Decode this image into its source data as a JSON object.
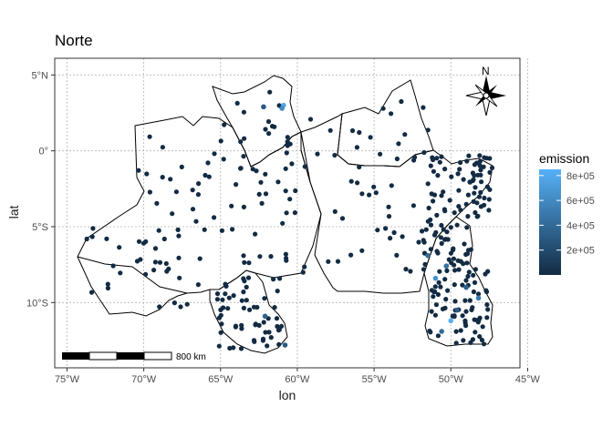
{
  "title": "Norte",
  "chart_data": {
    "type": "scatter",
    "title": "Norte",
    "xlabel": "lon",
    "ylabel": "lat",
    "xlim": [
      -75.8,
      -45.5
    ],
    "ylim": [
      -14.3,
      6.1
    ],
    "xticks": [
      -75,
      -70,
      -65,
      -60,
      -55,
      -50,
      -45
    ],
    "xtick_labels": [
      "75°W",
      "70°W",
      "65°W",
      "60°W",
      "55°W",
      "50°W",
      "45°W"
    ],
    "yticks": [
      5,
      0,
      -5,
      -10
    ],
    "ytick_labels": [
      "5°N",
      "0°",
      "5°S",
      "10°S"
    ],
    "grid": true,
    "legend": {
      "title": "emission",
      "placement": "right",
      "range": [
        0,
        850000
      ],
      "ticks": [
        200000,
        400000,
        600000,
        800000
      ],
      "tick_labels": [
        "2e+05",
        "4e+05",
        "6e+05",
        "8e+05"
      ],
      "color_low": "#132B43",
      "color_high": "#56B1F7"
    },
    "scalebar_label": "800 km",
    "north_arrow_label": "N",
    "point_color": "#132B43",
    "highlight_points": [
      {
        "lon": -60.9,
        "lat": 3.0,
        "emission": 780000
      },
      {
        "lon": -61.0,
        "lat": 2.8,
        "emission": 600000
      },
      {
        "lon": -62.2,
        "lat": 2.9,
        "emission": 300000
      },
      {
        "lon": -50.0,
        "lat": -11.2,
        "emission": 850000
      },
      {
        "lon": -50.6,
        "lat": -11.9,
        "emission": 400000
      },
      {
        "lon": -48.2,
        "lat": -9.7,
        "emission": 500000
      },
      {
        "lon": -49.0,
        "lat": -9.0,
        "emission": 350000
      },
      {
        "lon": -51.0,
        "lat": -8.4,
        "emission": 650000
      },
      {
        "lon": -50.3,
        "lat": -7.6,
        "emission": 450000
      },
      {
        "lon": -49.6,
        "lat": -10.5,
        "emission": 300000
      },
      {
        "lon": -62.1,
        "lat": -10.9,
        "emission": 350000
      },
      {
        "lon": -60.8,
        "lat": -12.8,
        "emission": 300000
      },
      {
        "lon": -51.5,
        "lat": -6.9,
        "emission": 400000
      }
    ]
  }
}
